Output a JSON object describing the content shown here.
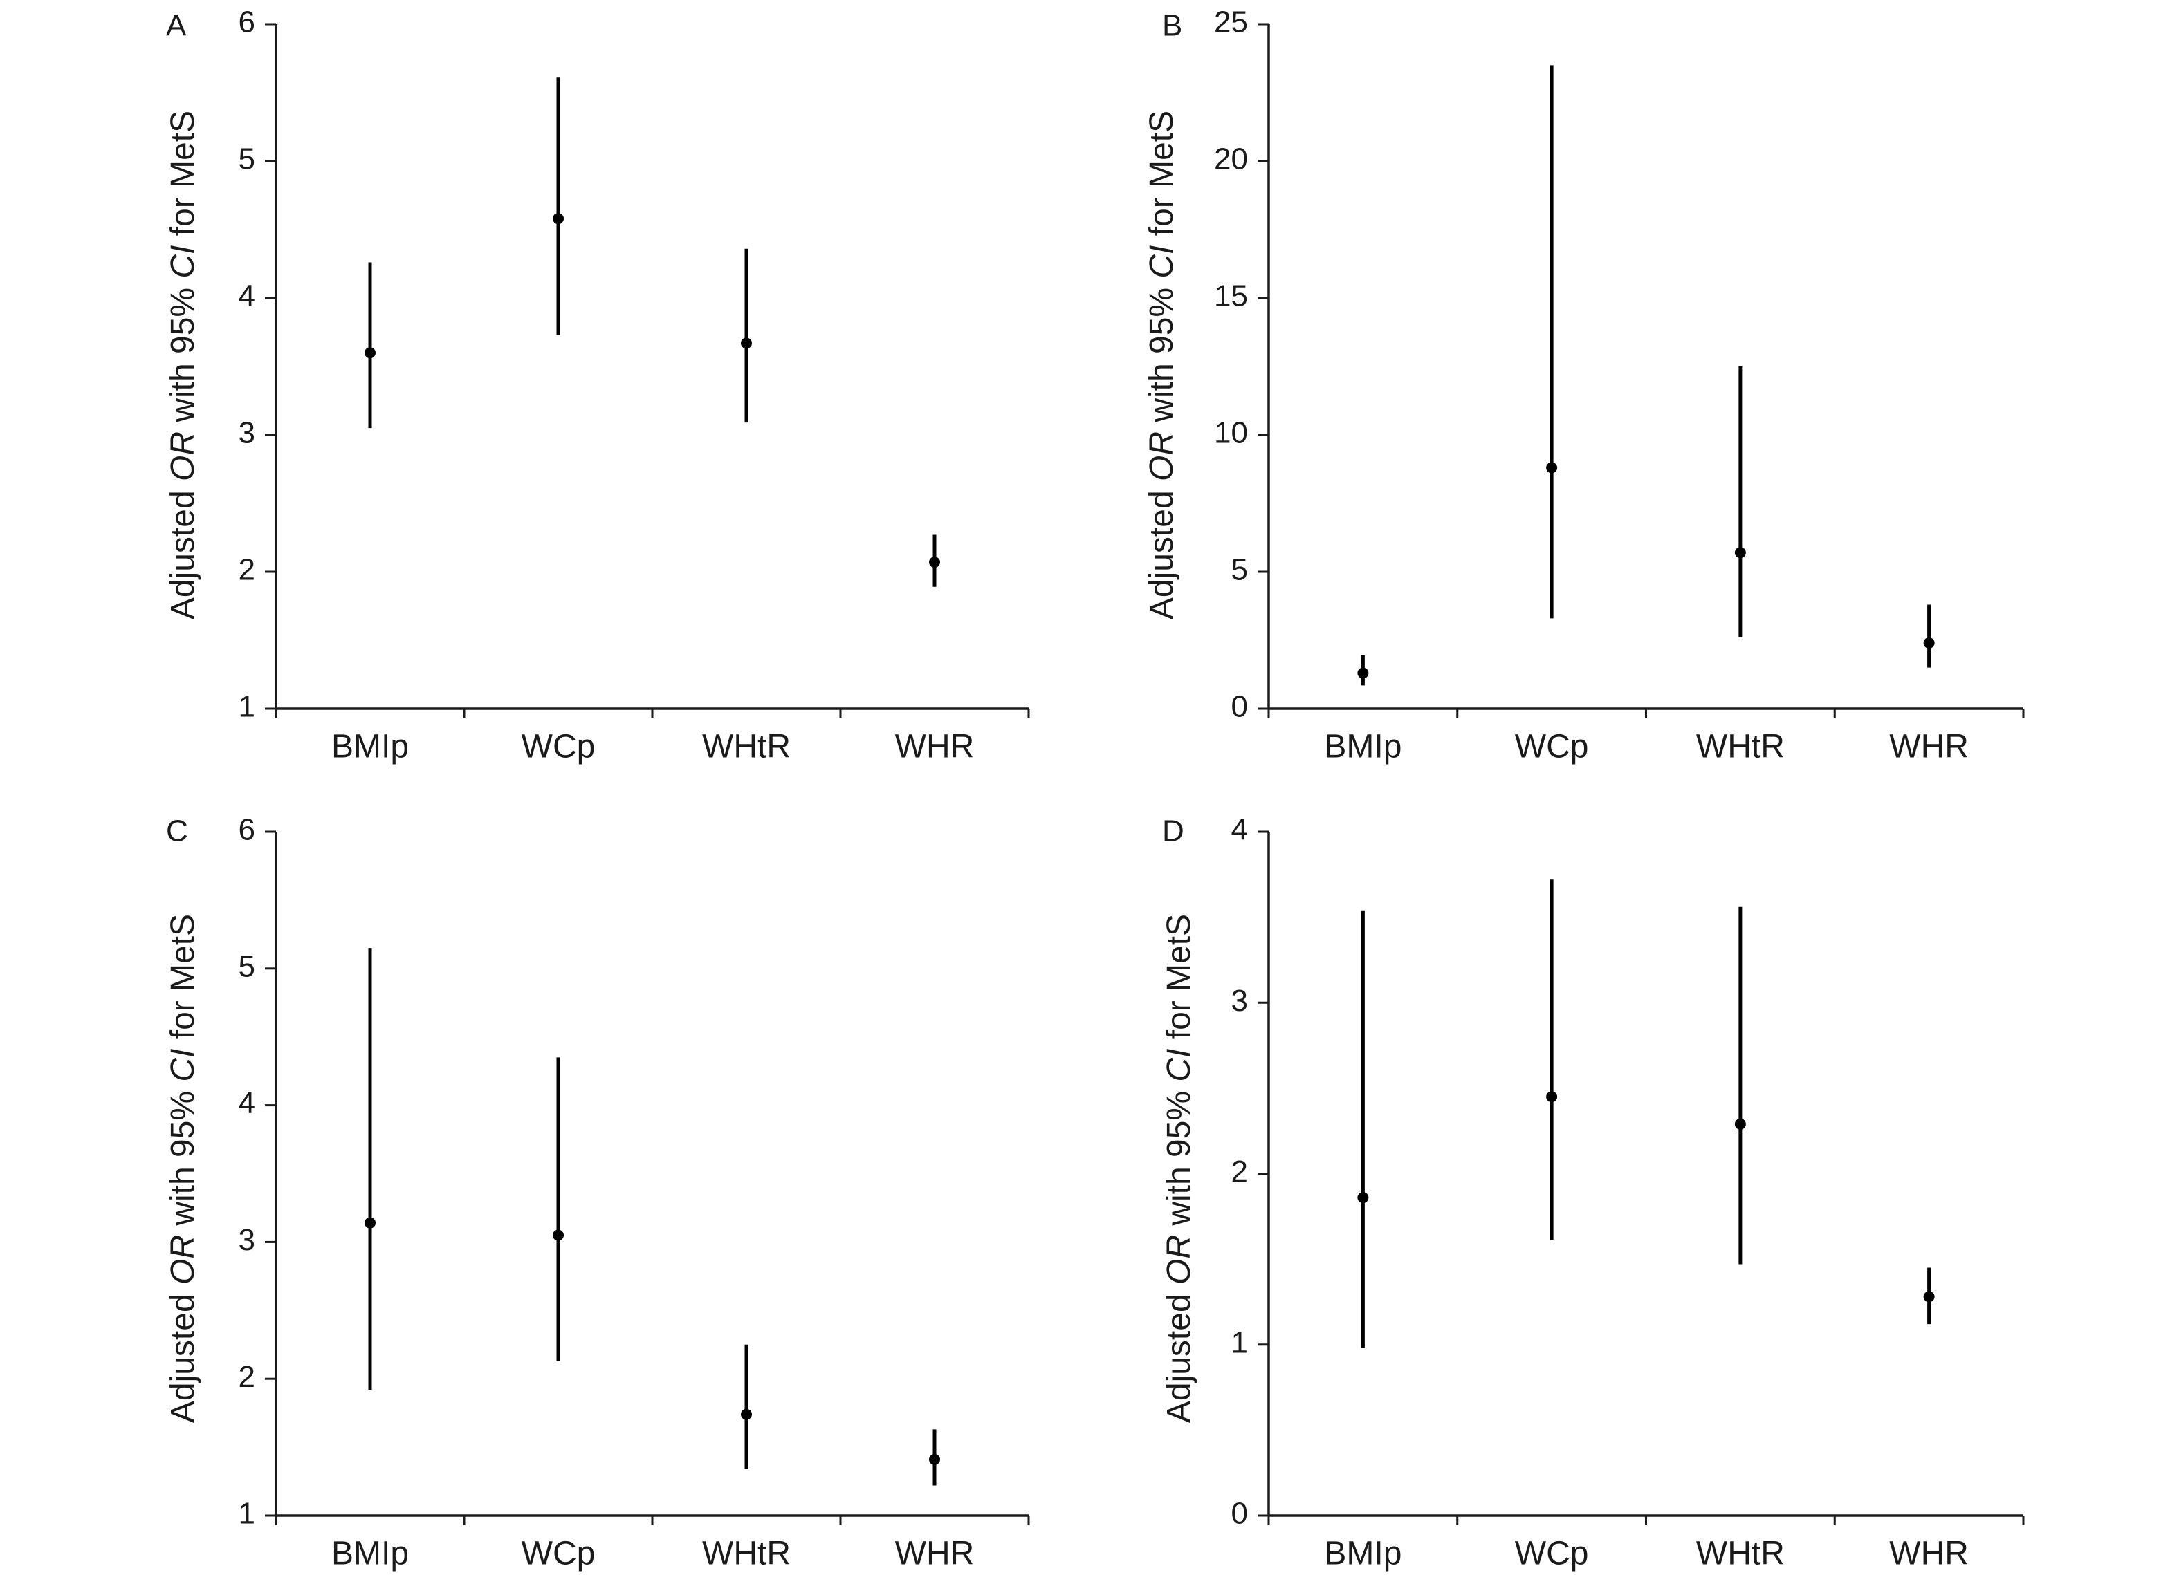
{
  "chart_data": [
    {
      "panel": "A",
      "type": "scatter",
      "categories": [
        "BMIp",
        "WCp",
        "WHtR",
        "WHR"
      ],
      "ylabel_parts": [
        "Adjusted ",
        "OR",
        " with 95% ",
        "CI",
        " for MetS"
      ],
      "ylim": [
        1,
        6
      ],
      "yticks": [
        1,
        2,
        3,
        4,
        5,
        6
      ],
      "points": [
        {
          "category": "BMIp",
          "or": 3.6,
          "lower": 3.05,
          "upper": 4.26
        },
        {
          "category": "WCp",
          "or": 4.58,
          "lower": 3.73,
          "upper": 5.61
        },
        {
          "category": "WHtR",
          "or": 3.67,
          "lower": 3.09,
          "upper": 4.36
        },
        {
          "category": "WHR",
          "or": 2.07,
          "lower": 1.89,
          "upper": 2.27
        }
      ]
    },
    {
      "panel": "B",
      "type": "scatter",
      "categories": [
        "BMIp",
        "WCp",
        "WHtR",
        "WHR"
      ],
      "ylabel_parts": [
        "Adjusted ",
        "OR",
        " with 95% ",
        "CI",
        " for MetS"
      ],
      "ylim": [
        0,
        25
      ],
      "yticks": [
        0,
        5,
        10,
        15,
        20,
        25
      ],
      "points": [
        {
          "category": "BMIp",
          "or": 1.3,
          "lower": 0.85,
          "upper": 1.95
        },
        {
          "category": "WCp",
          "or": 8.8,
          "lower": 3.3,
          "upper": 23.5
        },
        {
          "category": "WHtR",
          "or": 5.7,
          "lower": 2.6,
          "upper": 12.5
        },
        {
          "category": "WHR",
          "or": 2.4,
          "lower": 1.5,
          "upper": 3.8
        }
      ]
    },
    {
      "panel": "C",
      "type": "scatter",
      "categories": [
        "BMIp",
        "WCp",
        "WHtR",
        "WHR"
      ],
      "ylabel_parts": [
        "Adjusted ",
        "OR",
        " with 95% ",
        "CI",
        " for MetS"
      ],
      "ylim": [
        1,
        6
      ],
      "yticks": [
        1,
        2,
        3,
        4,
        5,
        6
      ],
      "points": [
        {
          "category": "BMIp",
          "or": 3.14,
          "lower": 1.92,
          "upper": 5.15
        },
        {
          "category": "WCp",
          "or": 3.05,
          "lower": 2.13,
          "upper": 4.35
        },
        {
          "category": "WHtR",
          "or": 1.74,
          "lower": 1.34,
          "upper": 2.25
        },
        {
          "category": "WHR",
          "or": 1.41,
          "lower": 1.22,
          "upper": 1.63
        }
      ]
    },
    {
      "panel": "D",
      "type": "scatter",
      "categories": [
        "BMIp",
        "WCp",
        "WHtR",
        "WHR"
      ],
      "ylabel_parts": [
        "Adjusted ",
        "OR",
        " with 95% ",
        "CI",
        " for MetS"
      ],
      "ylim": [
        0,
        4
      ],
      "yticks": [
        0,
        1,
        2,
        3,
        4
      ],
      "points": [
        {
          "category": "BMIp",
          "or": 1.86,
          "lower": 0.98,
          "upper": 3.54
        },
        {
          "category": "WCp",
          "or": 2.45,
          "lower": 1.61,
          "upper": 3.72
        },
        {
          "category": "WHtR",
          "or": 2.29,
          "lower": 1.47,
          "upper": 3.56
        },
        {
          "category": "WHR",
          "or": 1.28,
          "lower": 1.12,
          "upper": 1.45
        }
      ]
    }
  ]
}
